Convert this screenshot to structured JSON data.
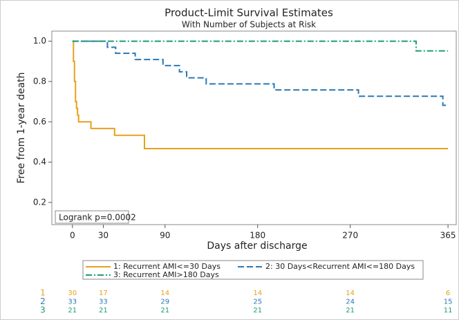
{
  "chart_data": {
    "type": "step",
    "title": "Product-Limit Survival Estimates",
    "subtitle": "With Number of Subjects at Risk",
    "x_label": "Days after discharge",
    "y_label": "Free from 1-year death",
    "annotation": "Logrank p=0.0002",
    "xlim": [
      -20,
      373
    ],
    "ylim": [
      0.09,
      1.05
    ],
    "xticks": [
      0,
      30,
      90,
      180,
      270,
      365
    ],
    "yticks": [
      0.2,
      0.4,
      0.6,
      0.8,
      {
        "value": 1,
        "label": "1.0"
      }
    ],
    "series": [
      {
        "name": "1: Recurrent AMI<=30 Days",
        "color": "#e8a01a",
        "dash": "solid",
        "x": [
          0,
          1,
          2,
          3,
          4,
          5,
          6,
          18,
          41,
          70,
          365
        ],
        "values": [
          1,
          0.9,
          0.8,
          0.7,
          0.667,
          0.633,
          0.6,
          0.567,
          0.533,
          0.467,
          0.467
        ]
      },
      {
        "name": "2: 30 Days<Recurrent AMI<=180 Days",
        "color": "#2a78b4",
        "dash": "dashed",
        "x": [
          0,
          34,
          42,
          61,
          88,
          104,
          111,
          130,
          196,
          278,
          360,
          365
        ],
        "values": [
          1,
          0.97,
          0.94,
          0.909,
          0.879,
          0.848,
          0.818,
          0.788,
          0.758,
          0.727,
          0.682,
          0.682
        ]
      },
      {
        "name": "3: Recurrent AMI>180 Days",
        "color": "#1a9c7a",
        "dash": "dashdot",
        "x": [
          0,
          334,
          365
        ],
        "values": [
          1,
          0.952,
          0.952
        ]
      }
    ],
    "at_risk": {
      "x": [
        0,
        30,
        90,
        180,
        270,
        365
      ],
      "rows": [
        {
          "label": "1",
          "color": "#e8a01a",
          "values": [
            30,
            17,
            14,
            14,
            14,
            6
          ]
        },
        {
          "label": "2",
          "color": "#2a78b4",
          "values": [
            33,
            33,
            29,
            25,
            24,
            15
          ]
        },
        {
          "label": "3",
          "color": "#1a9c7a",
          "values": [
            21,
            21,
            21,
            21,
            21,
            11
          ]
        }
      ]
    }
  }
}
